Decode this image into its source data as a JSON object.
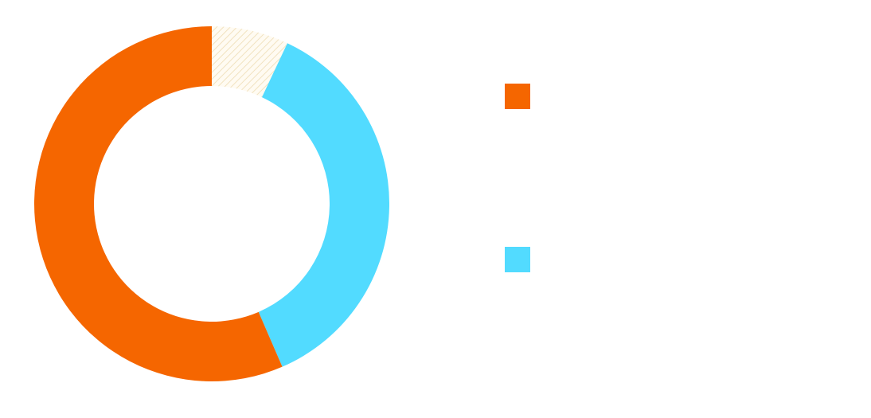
{
  "chart_data": {
    "type": "pie",
    "subtype": "donut",
    "legend_position": "right",
    "slices": [
      {
        "value": 56.5,
        "color": "#F56600",
        "pattern": "solid"
      },
      {
        "value": 36.5,
        "color": "#52DBFF",
        "pattern": "solid"
      },
      {
        "value": 7.0,
        "color": "#F3E6C6",
        "pattern": "hatched"
      }
    ],
    "legend": [
      {
        "color": "#F56600"
      },
      {
        "color": "#52DBFF"
      }
    ]
  }
}
